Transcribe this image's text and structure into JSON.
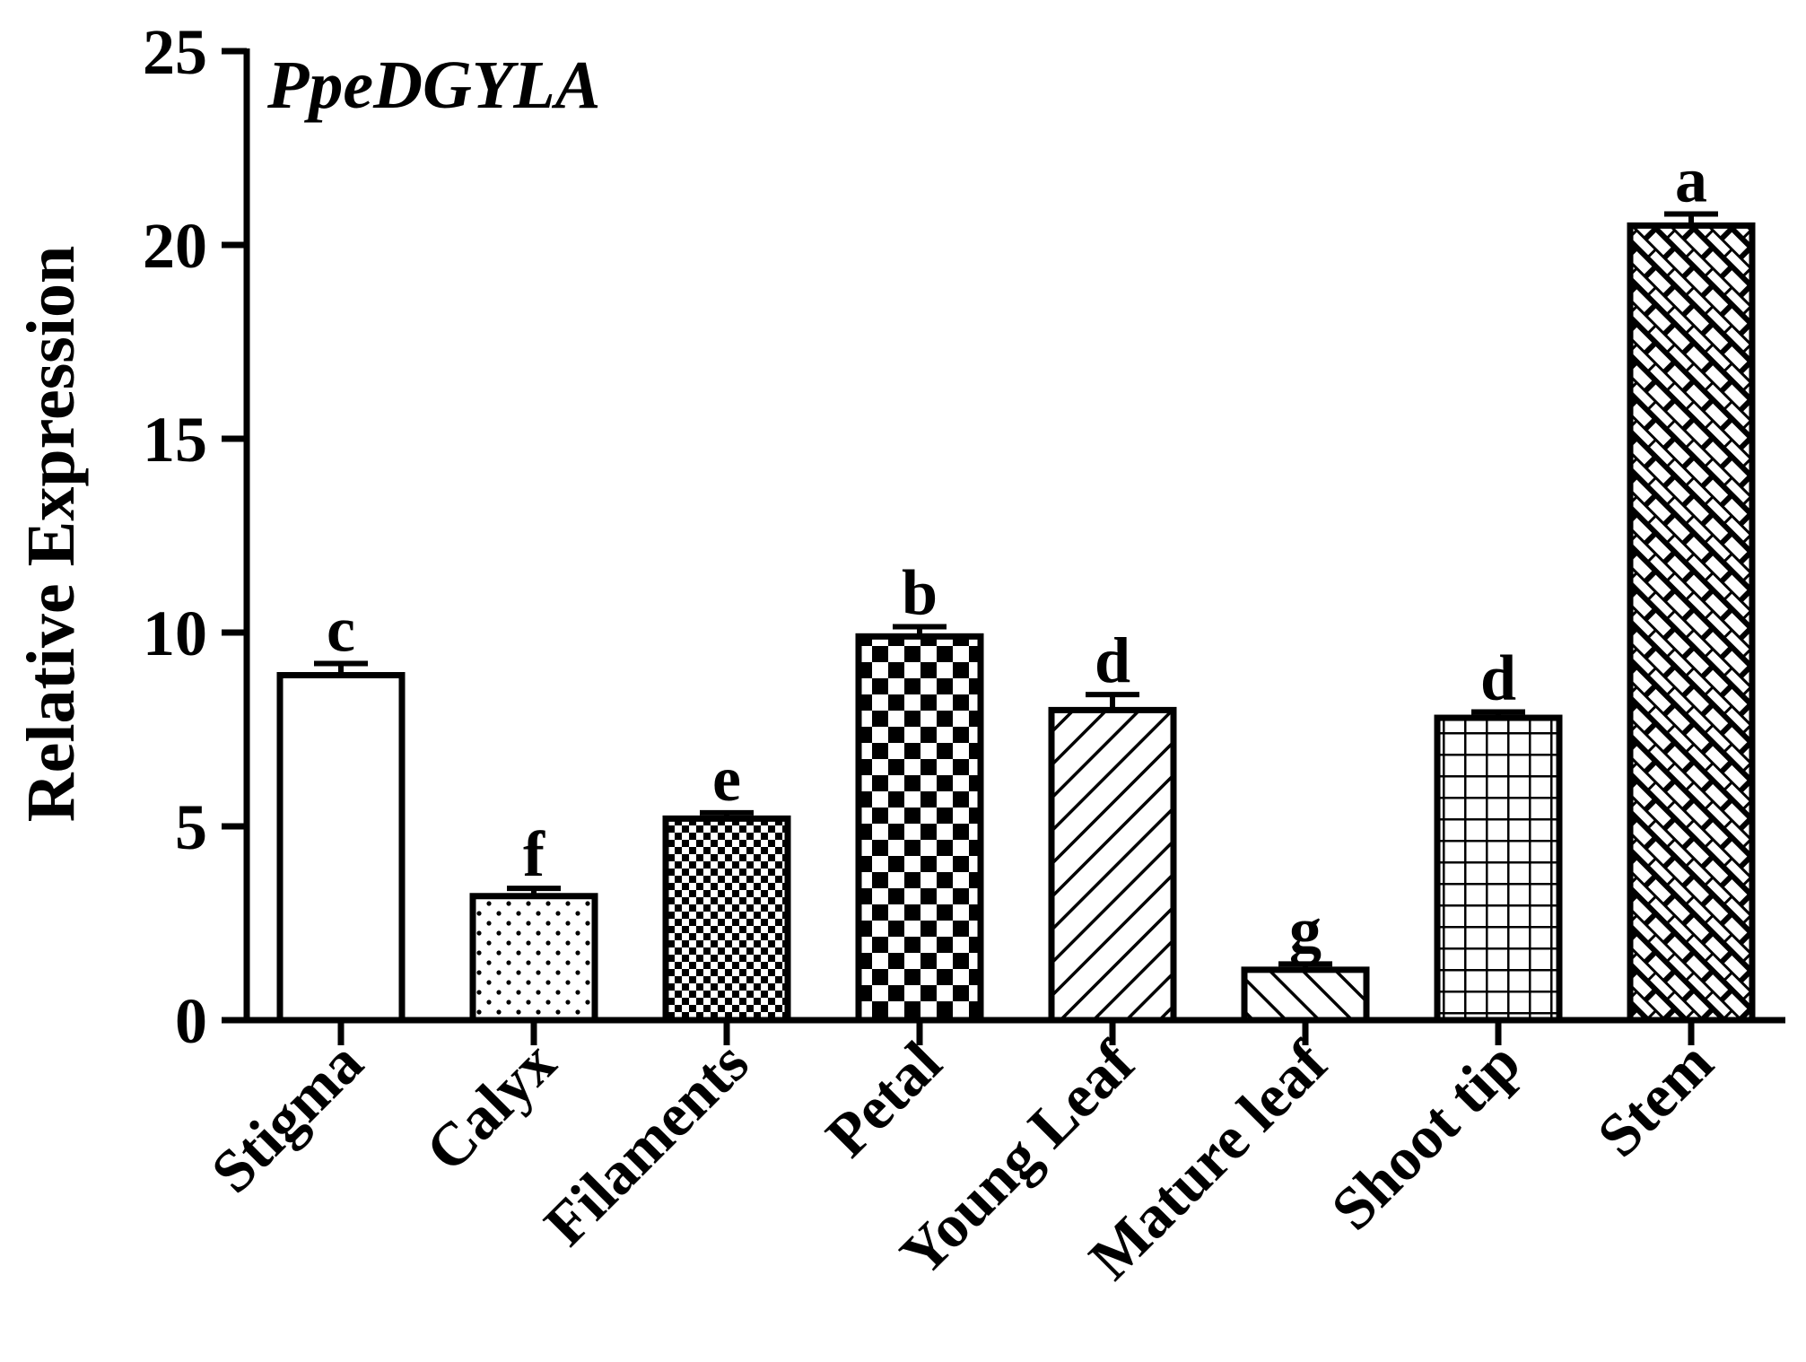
{
  "chart_data": {
    "type": "bar",
    "title": "PpeDGYLA",
    "xlabel": "",
    "ylabel": "Relative Expression",
    "ylim": [
      0,
      25
    ],
    "yticks": [
      0,
      5,
      10,
      15,
      20,
      25
    ],
    "grid": false,
    "legend": "none",
    "categories": [
      "Stigma",
      "Calyx",
      "Filaments",
      "Petal",
      "Young Leaf",
      "Mature leaf",
      "Shoot tip",
      "Stem"
    ],
    "values": [
      8.9,
      3.2,
      5.2,
      9.9,
      8.0,
      1.3,
      7.8,
      20.5
    ],
    "errors": [
      0.3,
      0.2,
      0.15,
      0.25,
      0.4,
      0.15,
      0.15,
      0.3
    ],
    "significance": [
      "c",
      "f",
      "e",
      "b",
      "d",
      "g",
      "d",
      "a"
    ],
    "fill_patterns": [
      "none",
      "dots",
      "fine-checker",
      "checker",
      "diagonal-forward",
      "diagonal-back",
      "grid",
      "crosshatch"
    ]
  },
  "colors": {
    "ink": "#000000",
    "background": "#ffffff"
  }
}
